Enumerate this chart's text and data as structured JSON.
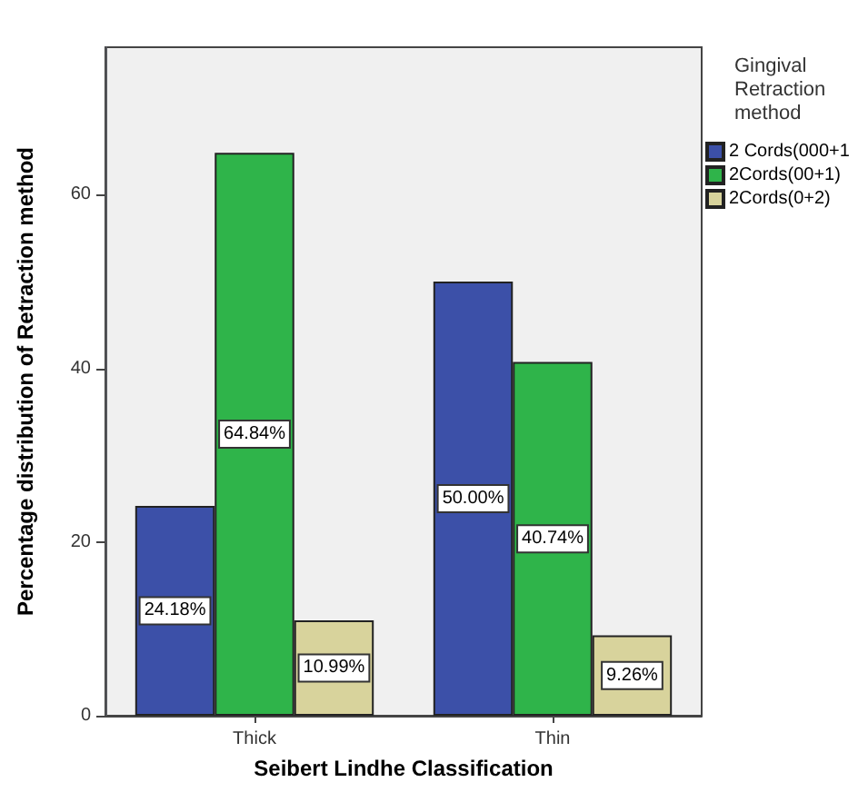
{
  "chart_data": {
    "type": "bar",
    "xlabel": "Seibert Lindhe Classification",
    "ylabel": "Percentage distribution of Retraction method",
    "legend_title": "Gingival Retraction method",
    "categories": [
      "Thick",
      "Thin"
    ],
    "series": [
      {
        "name": "2 Cords(000+1",
        "color": "#3c50a8",
        "values": [
          24.18,
          50.0
        ],
        "value_labels": [
          "24.18%",
          "50.00%"
        ]
      },
      {
        "name": "2Cords(00+1)",
        "color": "#2fb44a",
        "values": [
          64.84,
          40.74
        ],
        "value_labels": [
          "64.84%",
          "40.74%"
        ]
      },
      {
        "name": "2Cords(0+2)",
        "color": "#d8d39c",
        "values": [
          10.99,
          9.26
        ],
        "value_labels": [
          "10.99%",
          "9.26%"
        ]
      }
    ],
    "ylim": [
      0,
      77
    ],
    "yticks": [
      0,
      20,
      40,
      60
    ],
    "grid": false,
    "legend": "right"
  }
}
